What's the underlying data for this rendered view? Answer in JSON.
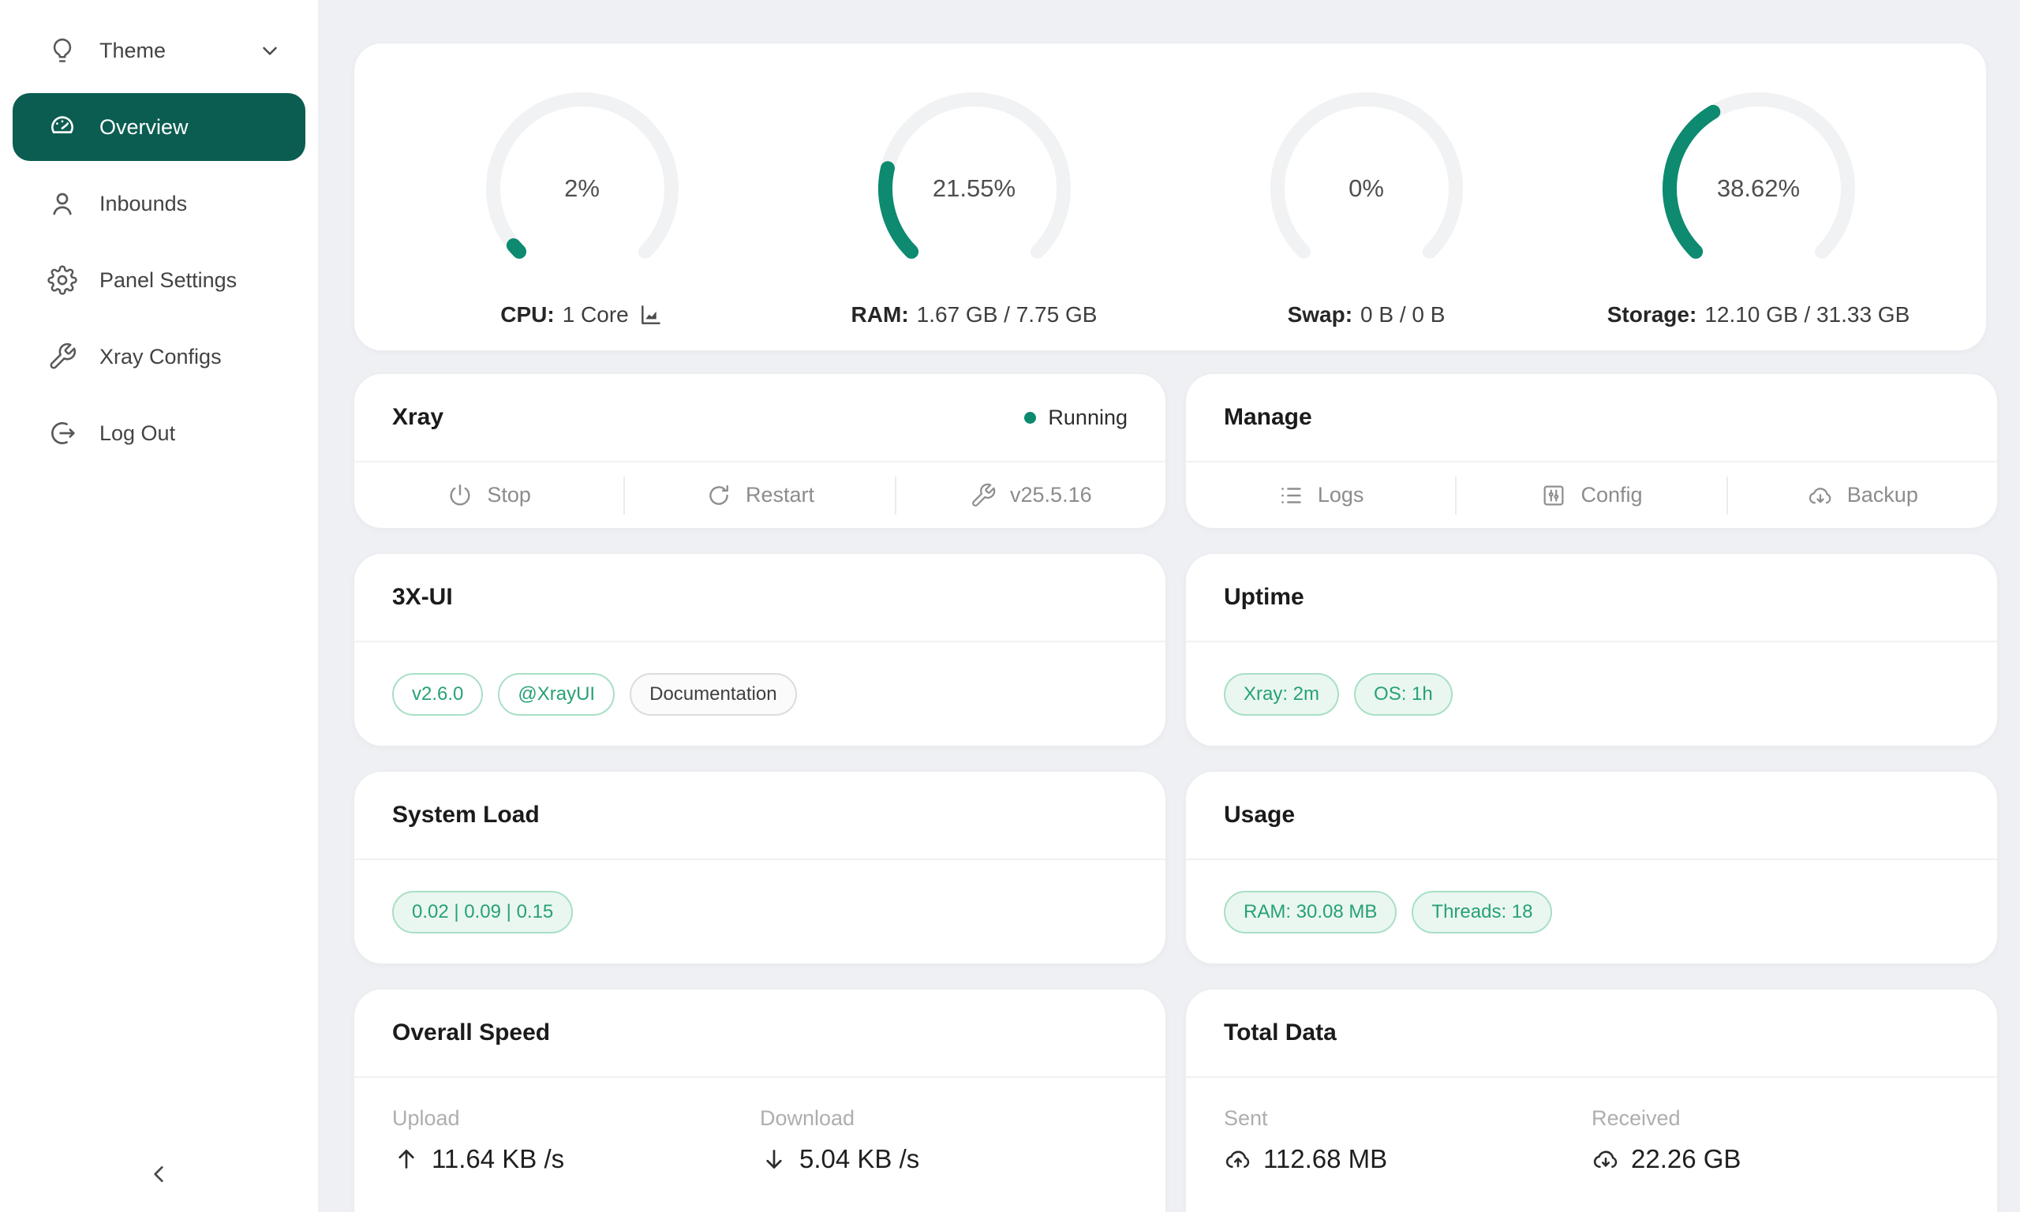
{
  "colors": {
    "accent": "#0b5d51",
    "gauge_green": "#0d8a70",
    "status_running": "#0c8a6e",
    "tag_green_text": "#27a173",
    "page_bg": "#eef0f3"
  },
  "sidebar": {
    "items": [
      {
        "label": "Theme",
        "icon": "lightbulb-icon",
        "has_chevron": true
      },
      {
        "label": "Overview",
        "icon": "dashboard-icon",
        "active": true
      },
      {
        "label": "Inbounds",
        "icon": "user-icon"
      },
      {
        "label": "Panel Settings",
        "icon": "gear-icon"
      },
      {
        "label": "Xray Configs",
        "icon": "wrench-icon"
      },
      {
        "label": "Log Out",
        "icon": "logout-icon"
      }
    ]
  },
  "gauges": [
    {
      "percent": 2,
      "percent_label": "2%",
      "label_bold": "CPU:",
      "label_value": "1 Core",
      "has_chart_icon": true
    },
    {
      "percent": 21.55,
      "percent_label": "21.55%",
      "label_bold": "RAM:",
      "label_value": "1.67 GB / 7.75 GB"
    },
    {
      "percent": 0,
      "percent_label": "0%",
      "label_bold": "Swap:",
      "label_value": "0 B / 0 B"
    },
    {
      "percent": 38.62,
      "percent_label": "38.62%",
      "label_bold": "Storage:",
      "label_value": "12.10 GB / 31.33 GB"
    }
  ],
  "xray_card": {
    "title": "Xray",
    "status_label": "Running",
    "actions": [
      {
        "label": "Stop",
        "icon": "power-icon"
      },
      {
        "label": "Restart",
        "icon": "refresh-icon"
      },
      {
        "label": "v25.5.16",
        "icon": "wrench-icon"
      }
    ]
  },
  "manage_card": {
    "title": "Manage",
    "actions": [
      {
        "label": "Logs",
        "icon": "list-icon"
      },
      {
        "label": "Config",
        "icon": "sliders-icon"
      },
      {
        "label": "Backup",
        "icon": "cloud-download-icon"
      }
    ]
  },
  "threexui_card": {
    "title": "3X-UI",
    "tags": [
      {
        "label": "v2.6.0",
        "style": "green-outline"
      },
      {
        "label": "@XrayUI",
        "style": "green-outline"
      },
      {
        "label": "Documentation",
        "style": "gray"
      }
    ]
  },
  "uptime_card": {
    "title": "Uptime",
    "tags": [
      {
        "label": "Xray: 2m"
      },
      {
        "label": "OS: 1h"
      }
    ]
  },
  "system_load_card": {
    "title": "System Load",
    "tags": [
      {
        "label": "0.02 | 0.09 | 0.15"
      }
    ]
  },
  "usage_card": {
    "title": "Usage",
    "tags": [
      {
        "label": "RAM: 30.08 MB"
      },
      {
        "label": "Threads: 18"
      }
    ]
  },
  "overall_speed_card": {
    "title": "Overall Speed",
    "stats": [
      {
        "label": "Upload",
        "value": "11.64 KB /s",
        "icon": "arrow-up-icon"
      },
      {
        "label": "Download",
        "value": "5.04 KB /s",
        "icon": "arrow-down-icon"
      }
    ]
  },
  "total_data_card": {
    "title": "Total Data",
    "stats": [
      {
        "label": "Sent",
        "value": "112.68 MB",
        "icon": "cloud-upload-icon"
      },
      {
        "label": "Received",
        "value": "22.26 GB",
        "icon": "cloud-download-icon"
      }
    ]
  }
}
